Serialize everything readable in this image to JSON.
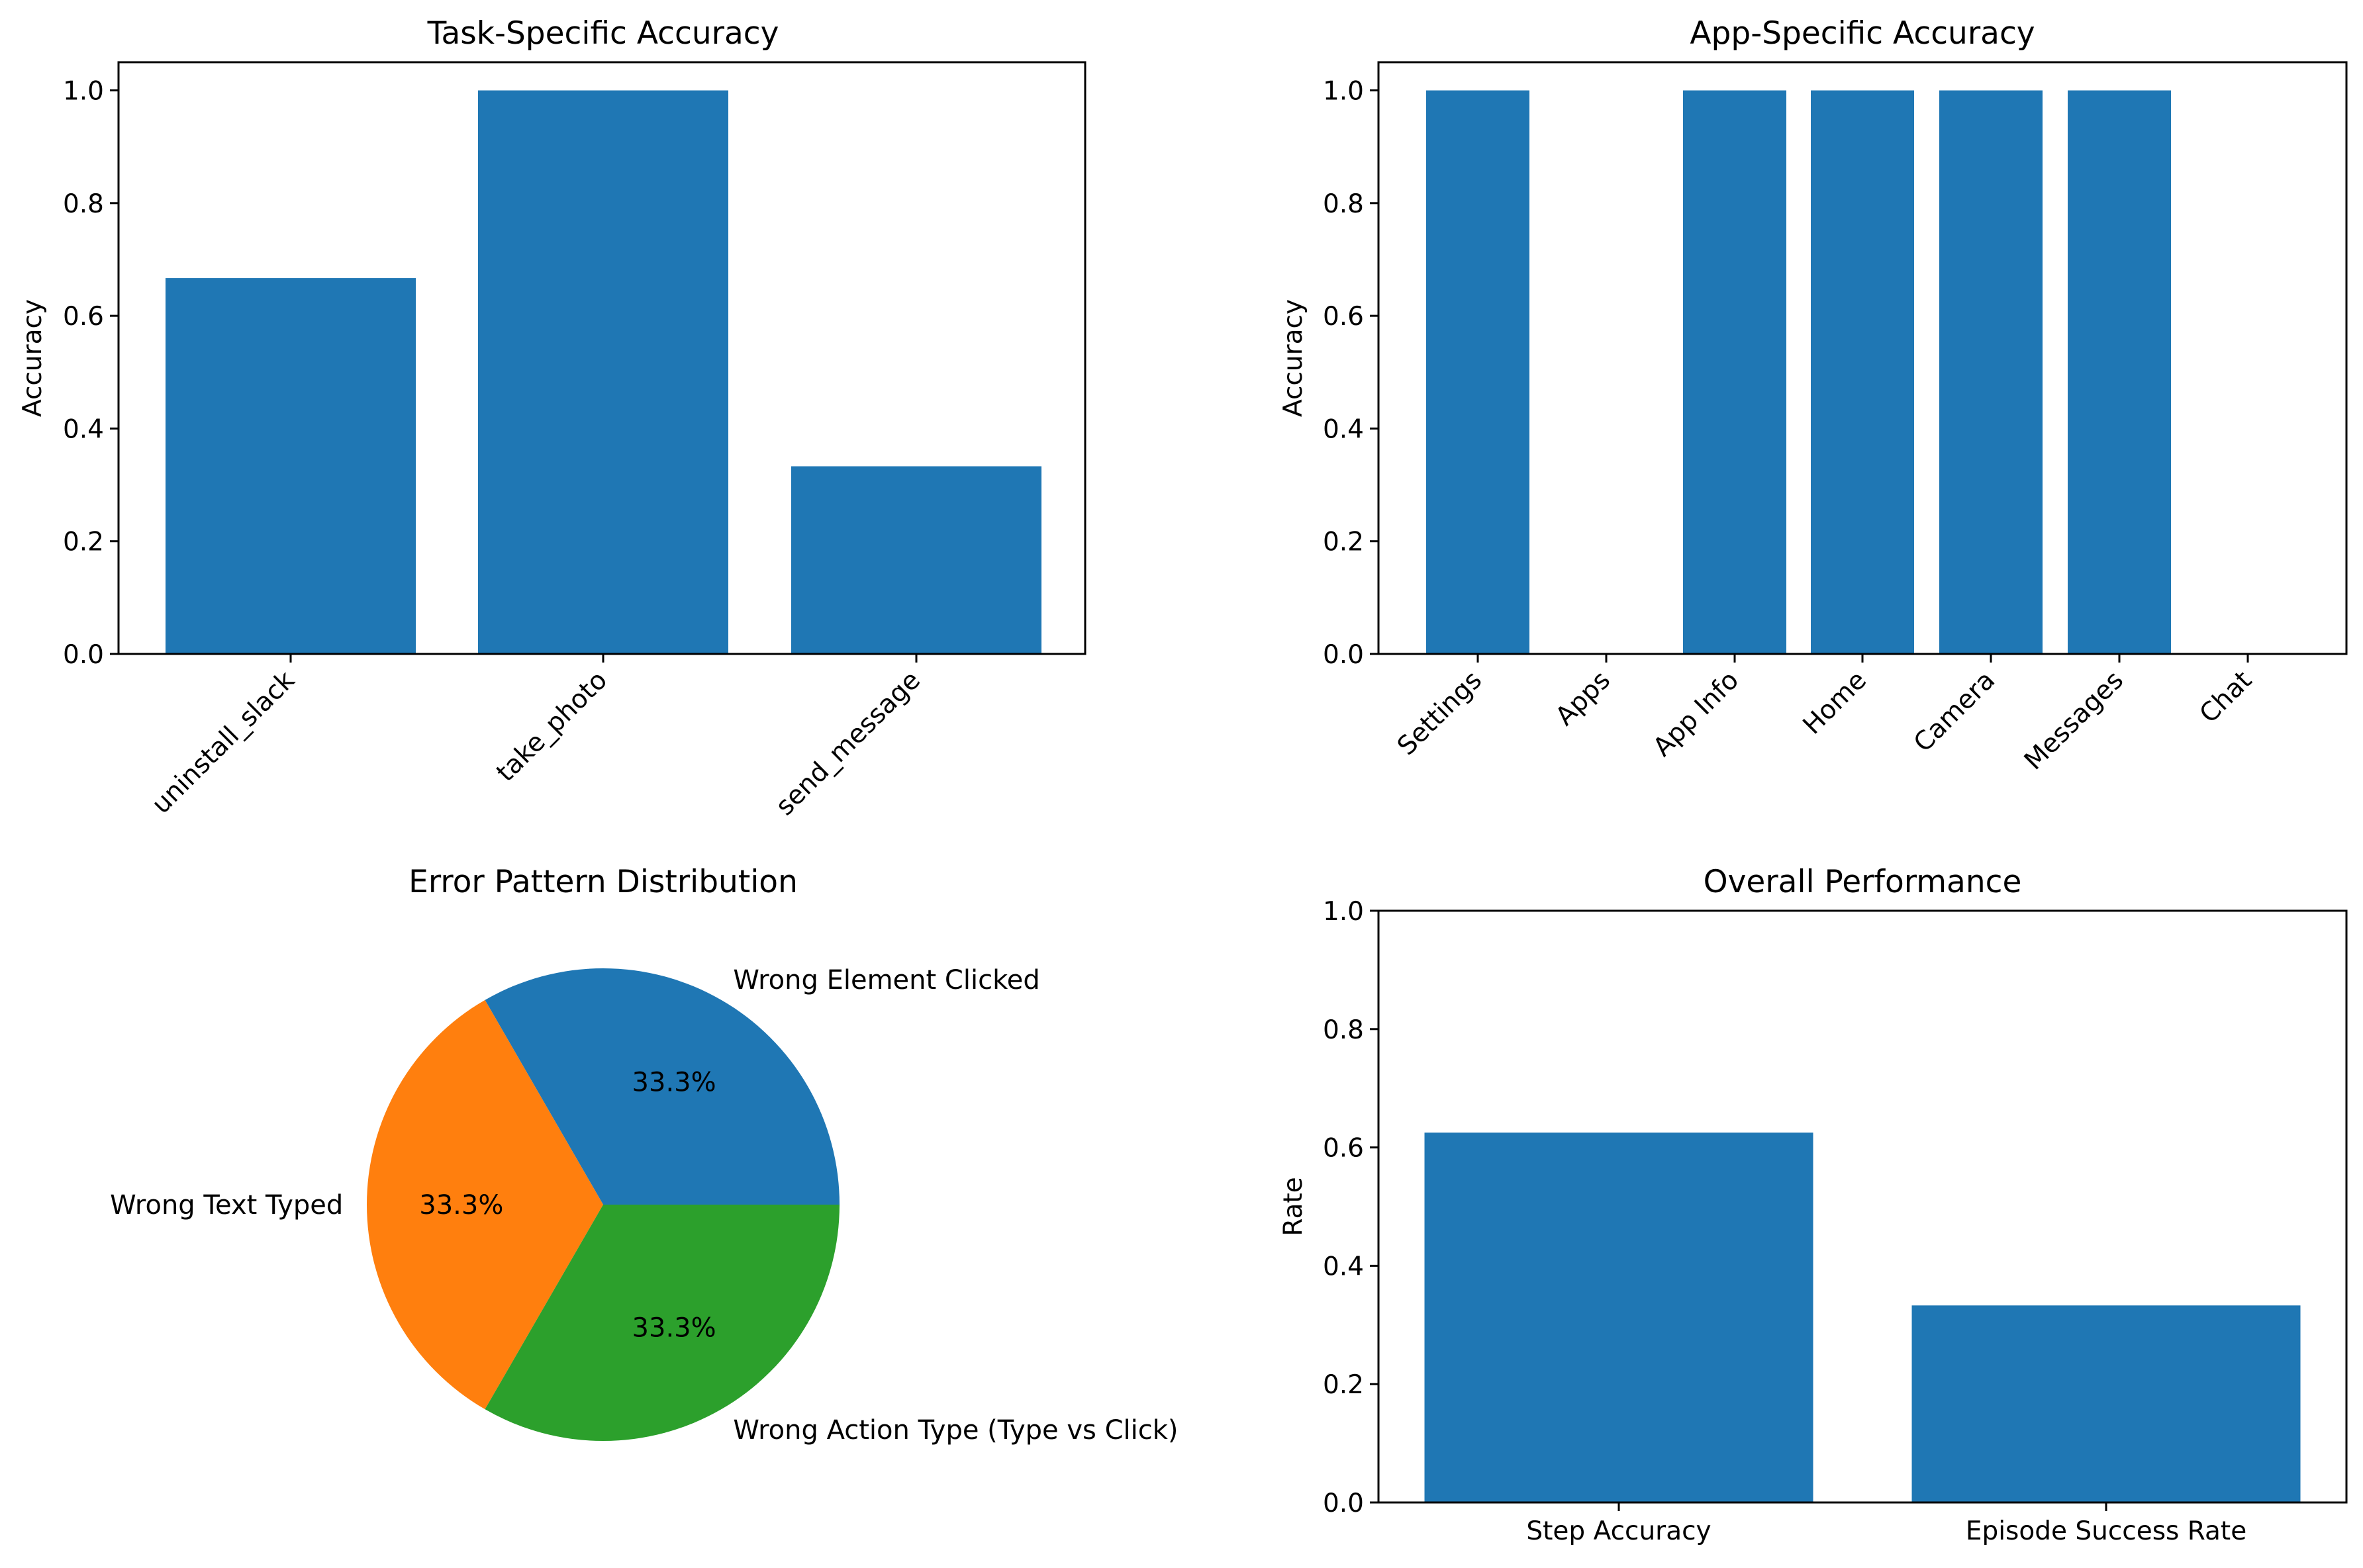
{
  "chart_data": [
    {
      "type": "bar",
      "title": "Task-Specific Accuracy",
      "xlabel": "",
      "ylabel": "Accuracy",
      "categories": [
        "uninstall_slack",
        "take_photo",
        "send_message"
      ],
      "values": [
        0.667,
        1.0,
        0.333
      ],
      "yticks": [
        "0.0",
        "0.2",
        "0.4",
        "0.6",
        "0.8",
        "1.0"
      ],
      "ylim": [
        0,
        1.05
      ],
      "grid": false,
      "color": "#1f77b4"
    },
    {
      "type": "bar",
      "title": "App-Specific Accuracy",
      "xlabel": "",
      "ylabel": "Accuracy",
      "categories": [
        "Settings",
        "Apps",
        "App Info",
        "Home",
        "Camera",
        "Messages",
        "Chat"
      ],
      "values": [
        1.0,
        0.0,
        1.0,
        1.0,
        1.0,
        1.0,
        0.0
      ],
      "yticks": [
        "0.0",
        "0.2",
        "0.4",
        "0.6",
        "0.8",
        "1.0"
      ],
      "ylim": [
        0,
        1.05
      ],
      "grid": false,
      "color": "#1f77b4"
    },
    {
      "type": "pie",
      "title": "Error Pattern Distribution",
      "slices": [
        {
          "label": "Wrong Element Clicked",
          "value": 1,
          "pct": "33.3%",
          "color": "#1f77b4"
        },
        {
          "label": "Wrong Text Typed",
          "value": 1,
          "pct": "33.3%",
          "color": "#ff7f0e"
        },
        {
          "label": "Wrong Action Type (Type vs Click)",
          "value": 1,
          "pct": "33.3%",
          "color": "#2ca02c"
        }
      ]
    },
    {
      "type": "bar",
      "title": "Overall Performance",
      "xlabel": "",
      "ylabel": "Rate",
      "categories": [
        "Step Accuracy",
        "Episode Success Rate"
      ],
      "values": [
        0.625,
        0.333
      ],
      "yticks": [
        "0.0",
        "0.2",
        "0.4",
        "0.6",
        "0.8",
        "1.0"
      ],
      "ylim": [
        0,
        1.0
      ],
      "grid": false,
      "color": "#1f77b4"
    }
  ]
}
